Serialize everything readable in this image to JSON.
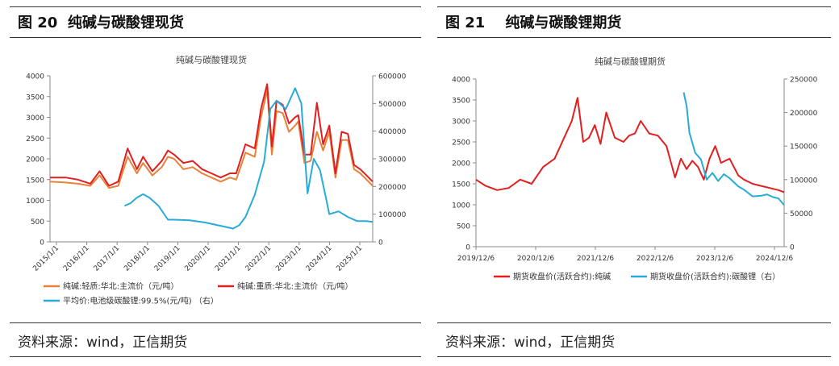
{
  "figures": [
    {
      "title": "图 20  纯碱与碳酸锂现货",
      "source": "资料来源：wind，正信期货"
    },
    {
      "title": "图 21    纯碱与碳酸锂期货",
      "source": "资料来源：wind，正信期货"
    }
  ],
  "chart_data": [
    {
      "type": "line",
      "title": "纯碱与碳酸锂现货",
      "x_ticks": [
        "2015/1/1",
        "2016/1/1",
        "2017/1/1",
        "2018/1/1",
        "2019/1/1",
        "2020/1/1",
        "2021/1/1",
        "2022/1/1",
        "2023/1/1",
        "2024/1/1",
        "2025/1/1"
      ],
      "x_range": [
        2015.0,
        2025.4
      ],
      "y_left": {
        "min": 0,
        "max": 4000,
        "ticks": [
          "0",
          "500",
          "1000",
          "1500",
          "2000",
          "2500",
          "3000",
          "3500",
          "4000"
        ]
      },
      "y_right": {
        "min": 0,
        "max": 600000,
        "ticks": [
          "0",
          "100000",
          "200000",
          "300000",
          "400000",
          "500000",
          "600000"
        ]
      },
      "grid": false,
      "legend_position": "bottom",
      "series": [
        {
          "name": "纯碱:轻质:华北:主流价（元/吨）",
          "axis": "left",
          "color": "#e8823a",
          "x": [
            2015.0,
            2015.5,
            2015.9,
            2016.3,
            2016.6,
            2016.9,
            2017.2,
            2017.5,
            2017.8,
            2018.0,
            2018.3,
            2018.6,
            2018.8,
            2019.0,
            2019.3,
            2019.6,
            2019.9,
            2020.2,
            2020.5,
            2020.8,
            2021.0,
            2021.3,
            2021.6,
            2021.8,
            2022.0,
            2022.15,
            2022.3,
            2022.5,
            2022.7,
            2022.9,
            2023.0,
            2023.2,
            2023.4,
            2023.6,
            2023.8,
            2024.0,
            2024.2,
            2024.4,
            2024.6,
            2024.8,
            2025.0,
            2025.2,
            2025.4
          ],
          "y": [
            1450,
            1430,
            1400,
            1350,
            1600,
            1300,
            1350,
            2050,
            1650,
            1900,
            1600,
            1800,
            2050,
            2000,
            1750,
            1800,
            1650,
            1550,
            1450,
            1550,
            1500,
            2150,
            2050,
            3000,
            3650,
            2100,
            3150,
            3100,
            2650,
            2800,
            2900,
            1900,
            1950,
            2650,
            2200,
            2650,
            1550,
            2450,
            2450,
            1750,
            1650,
            1500,
            1350
          ]
        },
        {
          "name": "纯碱:重质:华北:主流价（元/吨）",
          "axis": "left",
          "color": "#e02020",
          "x": [
            2015.0,
            2015.5,
            2015.9,
            2016.3,
            2016.6,
            2016.9,
            2017.2,
            2017.5,
            2017.8,
            2018.0,
            2018.3,
            2018.6,
            2018.8,
            2019.0,
            2019.3,
            2019.6,
            2019.9,
            2020.2,
            2020.5,
            2020.8,
            2021.0,
            2021.3,
            2021.6,
            2021.8,
            2022.0,
            2022.15,
            2022.3,
            2022.5,
            2022.7,
            2022.9,
            2023.0,
            2023.2,
            2023.4,
            2023.6,
            2023.8,
            2024.0,
            2024.2,
            2024.4,
            2024.6,
            2024.8,
            2025.0,
            2025.2,
            2025.4
          ],
          "y": [
            1550,
            1550,
            1500,
            1400,
            1700,
            1350,
            1450,
            2250,
            1750,
            2050,
            1700,
            1950,
            2200,
            2100,
            1900,
            1950,
            1750,
            1650,
            1550,
            1650,
            1650,
            2350,
            2250,
            3200,
            3800,
            2300,
            3400,
            3300,
            2850,
            3000,
            3050,
            2100,
            2100,
            3350,
            2350,
            2800,
            1650,
            2650,
            2600,
            1850,
            1750,
            1600,
            1450
          ]
        },
        {
          "name": "平均价:电池级碳酸锂:99.5%(元/吨)  （右）",
          "axis": "right",
          "color": "#29abd9",
          "x": [
            2017.4,
            2017.6,
            2017.8,
            2018.0,
            2018.2,
            2018.5,
            2018.8,
            2019.0,
            2019.5,
            2020.0,
            2020.5,
            2020.9,
            2021.1,
            2021.3,
            2021.6,
            2021.9,
            2022.1,
            2022.3,
            2022.6,
            2022.9,
            2023.1,
            2023.3,
            2023.5,
            2023.7,
            2023.9,
            2024.0,
            2024.3,
            2024.6,
            2024.9,
            2025.2,
            2025.4
          ],
          "y": [
            130000,
            140000,
            160000,
            172000,
            160000,
            130000,
            80000,
            80000,
            78000,
            70000,
            58000,
            48000,
            60000,
            90000,
            170000,
            290000,
            480000,
            510000,
            480000,
            555000,
            500000,
            175000,
            300000,
            260000,
            155000,
            100000,
            110000,
            90000,
            75000,
            75000,
            72000
          ]
        }
      ]
    },
    {
      "type": "line",
      "title": "纯碱与碳酸锂期货",
      "x_ticks": [
        "2019/12/6",
        "2020/12/6",
        "2021/12/6",
        "2022/12/6",
        "2023/12/6",
        "2024/12/6"
      ],
      "x_range": [
        2019.93,
        2025.3
      ],
      "y_left": {
        "min": 0,
        "max": 4000,
        "ticks": [
          "0",
          "500",
          "1000",
          "1500",
          "2000",
          "2500",
          "3000",
          "3500",
          "4000"
        ]
      },
      "y_right": {
        "min": 0,
        "max": 250000,
        "ticks": [
          "0",
          "50000",
          "100000",
          "150000",
          "200000",
          "250000"
        ]
      },
      "grid": false,
      "legend_position": "bottom",
      "series": [
        {
          "name": "期货收盘价(活跃合约):纯碱",
          "axis": "left",
          "color": "#e02020",
          "x": [
            2019.93,
            2020.1,
            2020.3,
            2020.5,
            2020.7,
            2020.9,
            2021.1,
            2021.3,
            2021.5,
            2021.6,
            2021.7,
            2021.8,
            2021.9,
            2022.0,
            2022.1,
            2022.2,
            2022.35,
            2022.5,
            2022.6,
            2022.7,
            2022.8,
            2022.95,
            2023.1,
            2023.25,
            2023.4,
            2023.5,
            2023.6,
            2023.7,
            2023.8,
            2023.9,
            2024.0,
            2024.1,
            2024.2,
            2024.35,
            2024.5,
            2024.6,
            2024.75,
            2024.9,
            2025.05,
            2025.2,
            2025.3
          ],
          "y": [
            1600,
            1450,
            1350,
            1400,
            1600,
            1500,
            1900,
            2100,
            2700,
            3000,
            3550,
            2500,
            2600,
            2900,
            2450,
            3200,
            2600,
            2500,
            2650,
            2700,
            3000,
            2700,
            2650,
            2400,
            1650,
            2100,
            1850,
            2050,
            1900,
            1600,
            2100,
            2400,
            2000,
            2100,
            1700,
            1600,
            1500,
            1450,
            1400,
            1350,
            1300
          ]
        },
        {
          "name": "期货收盘价(活跃合约):碳酸锂（右）",
          "axis": "right",
          "color": "#29abd9",
          "x": [
            2023.55,
            2023.6,
            2023.65,
            2023.75,
            2023.85,
            2023.95,
            2024.05,
            2024.15,
            2024.25,
            2024.35,
            2024.5,
            2024.6,
            2024.75,
            2024.9,
            2025.0,
            2025.1,
            2025.2,
            2025.3
          ],
          "y": [
            230000,
            210000,
            170000,
            140000,
            130000,
            100000,
            110000,
            98000,
            108000,
            102000,
            90000,
            85000,
            75000,
            76000,
            78000,
            74000,
            72000,
            62000
          ]
        }
      ]
    }
  ]
}
